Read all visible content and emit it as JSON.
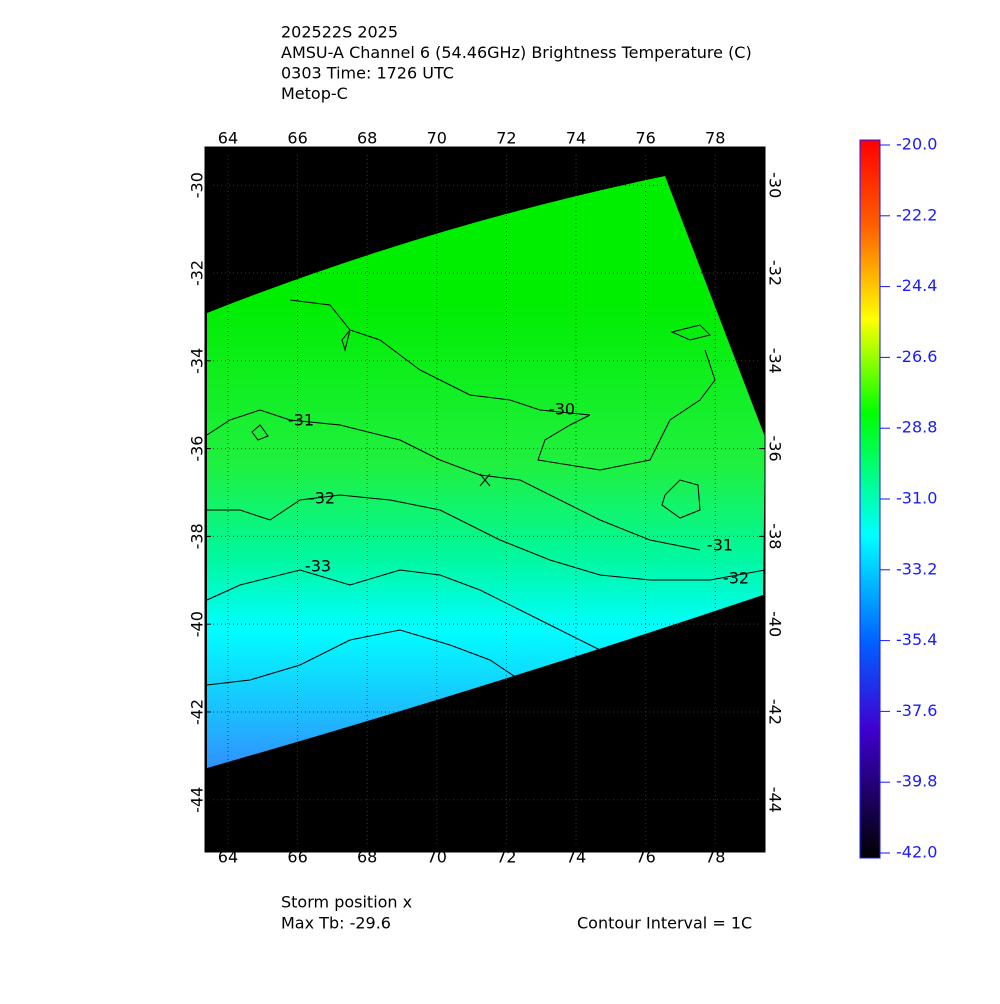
{
  "header": {
    "lines": [
      "202522S 2025",
      "AMSU-A Channel 6 (54.46GHz) Brightness Temperature (C)",
      "0303 Time: 1726 UTC",
      "Metop-C"
    ]
  },
  "map": {
    "xlim": [
      63.34,
      79.43
    ],
    "ylim": [
      -45.19,
      -29.13
    ],
    "xticks": [
      64,
      66,
      68,
      70,
      72,
      74,
      76,
      78
    ],
    "yticks": [
      -30,
      -32,
      -34,
      -36,
      -38,
      -40,
      -42,
      -44
    ],
    "contour_labels": [
      "-30",
      "-31",
      "-32",
      "-33",
      "-31",
      "-32"
    ]
  },
  "colorbar": {
    "lim": [
      -42,
      -20
    ],
    "ticks": [
      {
        "value": -20,
        "label": "-20.0"
      },
      {
        "value": -22.2,
        "label": "-22.2"
      },
      {
        "value": -24.4,
        "label": "-24.4"
      },
      {
        "value": -26.6,
        "label": "-26.6"
      },
      {
        "value": -28.8,
        "label": "-28.8"
      },
      {
        "value": -31,
        "label": "-31.0"
      },
      {
        "value": -33.2,
        "label": "-33.2"
      },
      {
        "value": -35.4,
        "label": "-35.4"
      },
      {
        "value": -37.6,
        "label": "-37.6"
      },
      {
        "value": -39.8,
        "label": "-39.8"
      },
      {
        "value": -42,
        "label": "-42.0"
      }
    ]
  },
  "footer": {
    "storm_position": "Storm position x",
    "max_tb": "Max Tb: -29.6",
    "contour_interval": "Contour Interval = 1C"
  }
}
